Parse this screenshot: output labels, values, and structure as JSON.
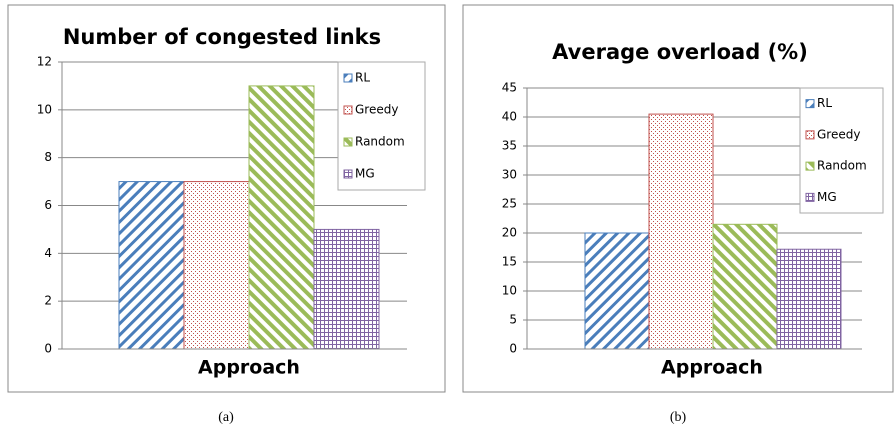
{
  "chart_data": [
    {
      "type": "bar",
      "title": "Number of congested links",
      "x_label": "Approach",
      "caption": "(a)",
      "ylim": [
        0,
        12
      ],
      "yticks": [
        0,
        2,
        4,
        6,
        8,
        10,
        12
      ],
      "grid": true,
      "legend": "upper right",
      "series": [
        {
          "name": "RL",
          "color": "#4a7ebb",
          "pattern": "stripes-up",
          "values": [
            7
          ]
        },
        {
          "name": "Greedy",
          "color": "#c0504d",
          "pattern": "dots",
          "values": [
            7
          ]
        },
        {
          "name": "Random",
          "color": "#9bbb59",
          "pattern": "stripes-down",
          "values": [
            11
          ]
        },
        {
          "name": "MG",
          "color": "#8064a2",
          "pattern": "grid",
          "values": [
            5
          ]
        }
      ]
    },
    {
      "type": "bar",
      "title": "Average overload (%)",
      "x_label": "Approach",
      "caption": "(b)",
      "ylim": [
        0,
        45
      ],
      "yticks": [
        0,
        5,
        10,
        15,
        20,
        25,
        30,
        35,
        40,
        45
      ],
      "grid": true,
      "legend": "upper right",
      "series": [
        {
          "name": "RL",
          "color": "#4a7ebb",
          "pattern": "stripes-up",
          "values": [
            20
          ]
        },
        {
          "name": "Greedy",
          "color": "#c0504d",
          "pattern": "dots",
          "values": [
            40.5
          ]
        },
        {
          "name": "Random",
          "color": "#9bbb59",
          "pattern": "stripes-down",
          "values": [
            21.5
          ]
        },
        {
          "name": "MG",
          "color": "#8064a2",
          "pattern": "grid",
          "values": [
            17.2
          ]
        }
      ]
    }
  ]
}
